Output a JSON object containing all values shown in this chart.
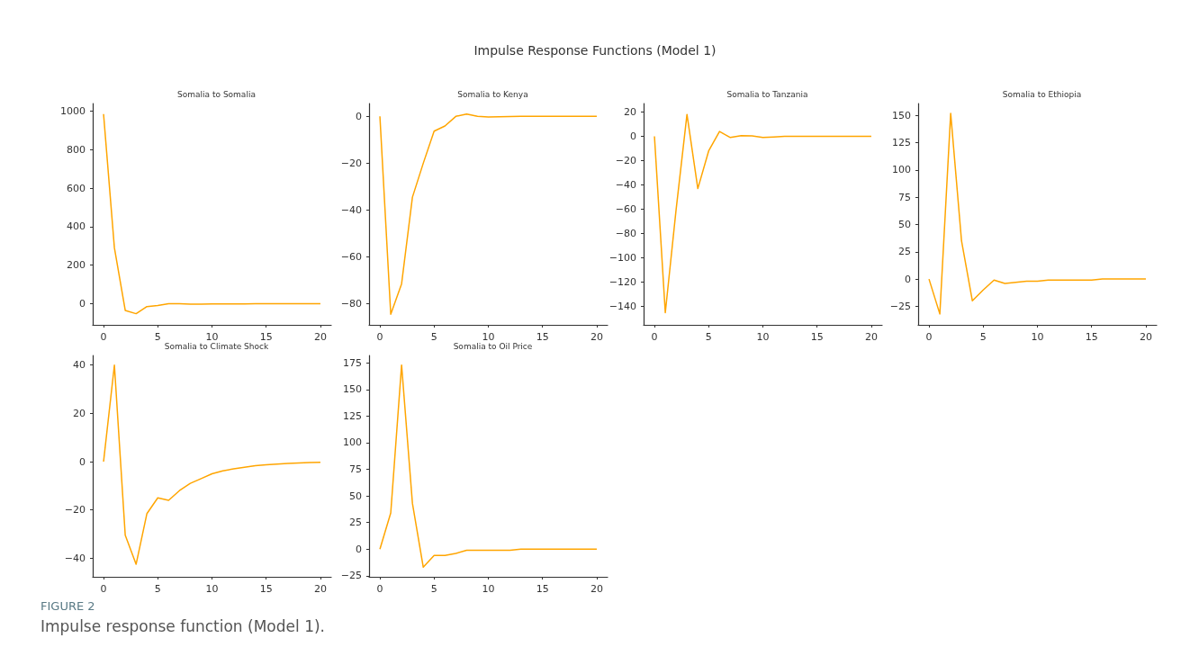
{
  "chart_data": [
    {
      "type": "line",
      "title": "Somalia to Somalia",
      "annotations": [
        "Impulse Response Functions (Model 1)",
        "FIGURE 2",
        "Impulse response function (Model 1)."
      ],
      "x": [
        0,
        1,
        2,
        3,
        4,
        5,
        6,
        7,
        8,
        9,
        10,
        11,
        12,
        13,
        14,
        15,
        16,
        17,
        18,
        19,
        20
      ],
      "series": [
        {
          "color": "#ffa500",
          "values": [
            985,
            290,
            -35,
            -52,
            -15,
            -10,
            0,
            0,
            -2,
            -2,
            -1,
            -1,
            -1,
            -1,
            0,
            0,
            0,
            0,
            0,
            0,
            0
          ]
        }
      ],
      "xlim": [
        -1,
        21
      ],
      "xticks": [
        0,
        5,
        10,
        15,
        20
      ],
      "ylim": [
        -110,
        1040
      ],
      "yticks": [
        0,
        200,
        400,
        600,
        800,
        1000
      ],
      "grid": false,
      "marker": "none",
      "line_style": "solid"
    },
    {
      "type": "line",
      "title": "Somalia to Kenya",
      "x": [
        0,
        1,
        2,
        3,
        4,
        5,
        6,
        7,
        8,
        9,
        10,
        11,
        12,
        13,
        14,
        15,
        16,
        17,
        18,
        19,
        20
      ],
      "series": [
        {
          "color": "#ffa500",
          "values": [
            0,
            -84.5,
            -71.5,
            -34.5,
            -20,
            -6.3,
            -4.1,
            0,
            1,
            0,
            -0.3,
            -0.2,
            -0.1,
            0,
            0,
            0,
            0,
            0,
            0,
            0,
            0
          ]
        }
      ],
      "xlim": [
        -1,
        21
      ],
      "xticks": [
        0,
        5,
        10,
        15,
        20
      ],
      "ylim": [
        -89,
        5.5
      ],
      "yticks": [
        -80,
        -60,
        -40,
        -20,
        0
      ],
      "grid": false,
      "marker": "none",
      "line_style": "solid"
    },
    {
      "type": "line",
      "title": "Somalia to Tanzania",
      "x": [
        0,
        1,
        2,
        3,
        4,
        5,
        6,
        7,
        8,
        9,
        10,
        11,
        12,
        13,
        14,
        15,
        16,
        17,
        18,
        19,
        20
      ],
      "series": [
        {
          "color": "#ffa500",
          "values": [
            0,
            -145,
            -60,
            18,
            -43,
            -12,
            4,
            -1,
            0.5,
            0.3,
            -1,
            -0.5,
            0,
            0,
            0,
            0,
            0,
            0,
            0,
            0,
            0
          ]
        }
      ],
      "xlim": [
        -1,
        21
      ],
      "xticks": [
        0,
        5,
        10,
        15,
        20
      ],
      "ylim": [
        -155,
        27
      ],
      "yticks": [
        -140,
        -120,
        -100,
        -80,
        -60,
        -40,
        -20,
        0,
        20
      ],
      "grid": false,
      "marker": "none",
      "line_style": "solid"
    },
    {
      "type": "line",
      "title": "Somalia to Ethiopia",
      "x": [
        0,
        1,
        2,
        3,
        4,
        5,
        6,
        7,
        8,
        9,
        10,
        11,
        12,
        13,
        14,
        15,
        16,
        17,
        18,
        19,
        20
      ],
      "series": [
        {
          "color": "#ffa500",
          "values": [
            0,
            -32,
            152,
            35,
            -20,
            -10,
            -1,
            -4,
            -3,
            -2,
            -2,
            -1,
            -1,
            -1,
            -1,
            -1,
            0,
            0,
            0,
            0,
            0
          ]
        }
      ],
      "xlim": [
        -1,
        21
      ],
      "xticks": [
        0,
        5,
        10,
        15,
        20
      ],
      "ylim": [
        -42,
        161
      ],
      "yticks": [
        -25,
        0,
        25,
        50,
        75,
        100,
        125,
        150
      ],
      "grid": false,
      "marker": "none",
      "line_style": "solid"
    },
    {
      "type": "line",
      "title": "Somalia to Climate Shock",
      "x": [
        0,
        1,
        2,
        3,
        4,
        5,
        6,
        7,
        8,
        9,
        10,
        11,
        12,
        13,
        14,
        15,
        16,
        17,
        18,
        19,
        20
      ],
      "series": [
        {
          "color": "#ffa500",
          "values": [
            0,
            40,
            -30.5,
            -42.5,
            -21.5,
            -15,
            -16,
            -12,
            -9,
            -7,
            -5,
            -3.8,
            -3,
            -2.3,
            -1.7,
            -1.3,
            -1,
            -0.7,
            -0.5,
            -0.4,
            -0.3
          ]
        }
      ],
      "xlim": [
        -1,
        21
      ],
      "xticks": [
        0,
        5,
        10,
        15,
        20
      ],
      "ylim": [
        -47.7,
        44
      ],
      "yticks": [
        -40,
        -20,
        0,
        20,
        40
      ],
      "grid": false,
      "marker": "none",
      "line_style": "solid"
    },
    {
      "type": "line",
      "title": "Somalia to Oil Price",
      "x": [
        0,
        1,
        2,
        3,
        4,
        5,
        6,
        7,
        8,
        9,
        10,
        11,
        12,
        13,
        14,
        15,
        16,
        17,
        18,
        19,
        20
      ],
      "series": [
        {
          "color": "#ffa500",
          "values": [
            0,
            34,
            173,
            43,
            -17,
            -6,
            -6,
            -4,
            -1,
            -1,
            -1,
            -1,
            -1,
            0,
            0,
            0,
            0,
            0,
            0,
            0,
            0
          ]
        }
      ],
      "xlim": [
        -1,
        21
      ],
      "xticks": [
        0,
        5,
        10,
        15,
        20
      ],
      "ylim": [
        -26,
        182
      ],
      "yticks": [
        -25,
        0,
        25,
        50,
        75,
        100,
        125,
        150,
        175
      ],
      "grid": false,
      "marker": "none",
      "line_style": "solid"
    }
  ]
}
